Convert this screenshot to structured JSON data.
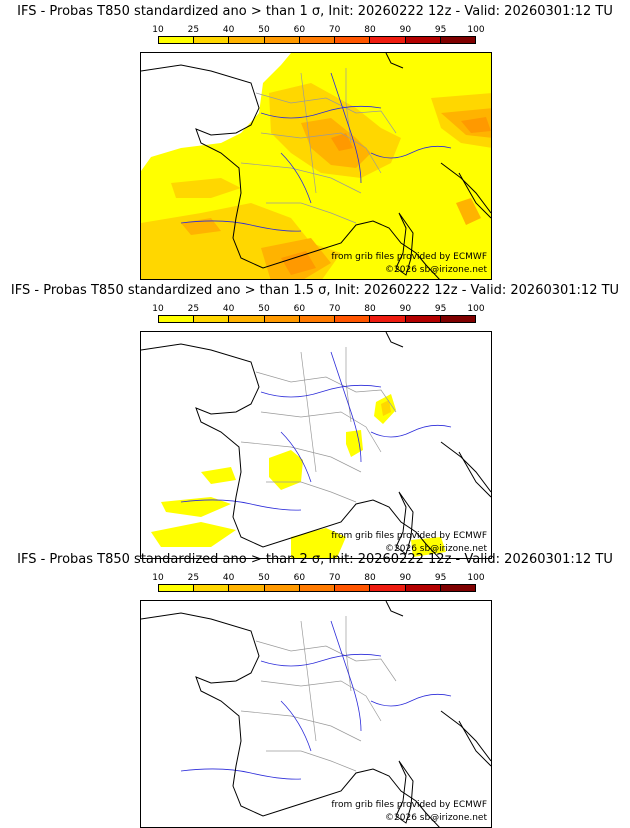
{
  "panels": [
    {
      "title": "IFS - Probas T850  standardized ano > than 1 σ, Init: 20260222 12z - Valid: 20260301:12 TU",
      "threshold": "1 σ",
      "coverage": "high"
    },
    {
      "title": "IFS - Probas T850  standardized ano > than 1.5 σ, Init: 20260222 12z - Valid: 20260301:12 TU",
      "threshold": "1.5 σ",
      "coverage": "low"
    },
    {
      "title": "IFS - Probas T850  standardized ano > than 2 σ, Init: 20260222 12z - Valid: 20260301:12 TU",
      "threshold": "2 σ",
      "coverage": "none"
    }
  ],
  "legend": {
    "ticks": [
      "10",
      "25",
      "40",
      "50",
      "60",
      "70",
      "80",
      "90",
      "95",
      "100"
    ],
    "colors": [
      "#ffff00",
      "#ffd700",
      "#ffb300",
      "#ff9900",
      "#ff7a00",
      "#ff5500",
      "#ee1c10",
      "#b30000",
      "#7f0000"
    ]
  },
  "credits": {
    "source": "from grib files provided by ECMWF",
    "copyright": "©2026 sb@irizone.net"
  },
  "colors": {
    "coast": "#000000",
    "rivers": "#2b2bd9",
    "borders": "#9a9a9a",
    "prob_low": "#ffff00",
    "prob_mid": "#ffd700",
    "prob_high": "#ffb300",
    "prob_top": "#ff9900"
  }
}
